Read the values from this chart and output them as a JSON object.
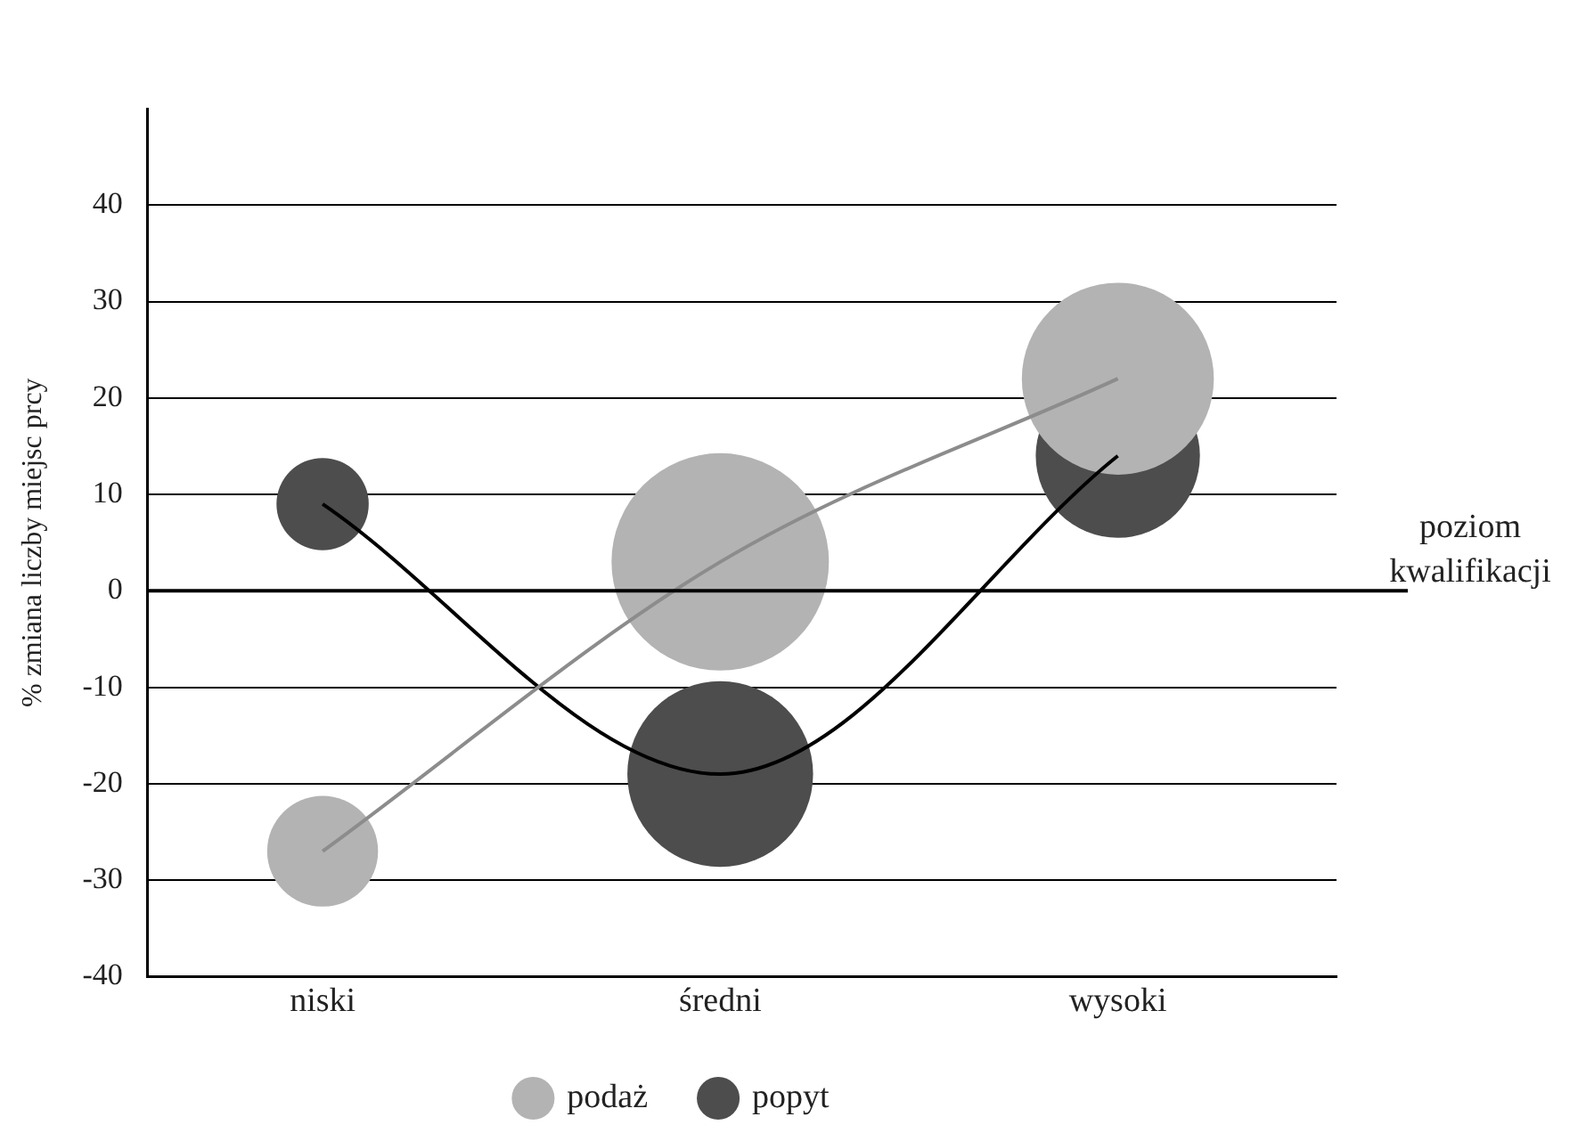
{
  "chart_data": {
    "type": "bubble",
    "ylabel": "% zmiana liczby miejsc prcy",
    "xlabel": "poziom kwalifikacji",
    "categories": [
      "niski",
      "średni",
      "wysoki"
    ],
    "series": [
      {
        "name": "podaż",
        "color": "#b3b3b3",
        "values": [
          -27,
          3,
          22
        ],
        "sizes": [
          0.26,
          1,
          0.78
        ]
      },
      {
        "name": "popyt",
        "color": "#4d4d4d",
        "values": [
          9,
          -19,
          14
        ],
        "sizes": [
          0.18,
          0.73,
          0.57
        ]
      },
      {
        "type": "line",
        "color": "#8c8c8c",
        "values": [
          -27,
          3,
          22
        ]
      },
      {
        "type": "line",
        "color": "#000000",
        "values": [
          9,
          -19,
          14
        ]
      }
    ],
    "ylim": [
      -40,
      50
    ],
    "yticks": [
      -40,
      -30,
      -20,
      -10,
      0,
      10,
      20,
      30,
      40
    ],
    "grid": "y",
    "legend": "bottom",
    "ref_lines": [
      {
        "axis": "y",
        "value": 0,
        "color": "#000000"
      }
    ]
  }
}
